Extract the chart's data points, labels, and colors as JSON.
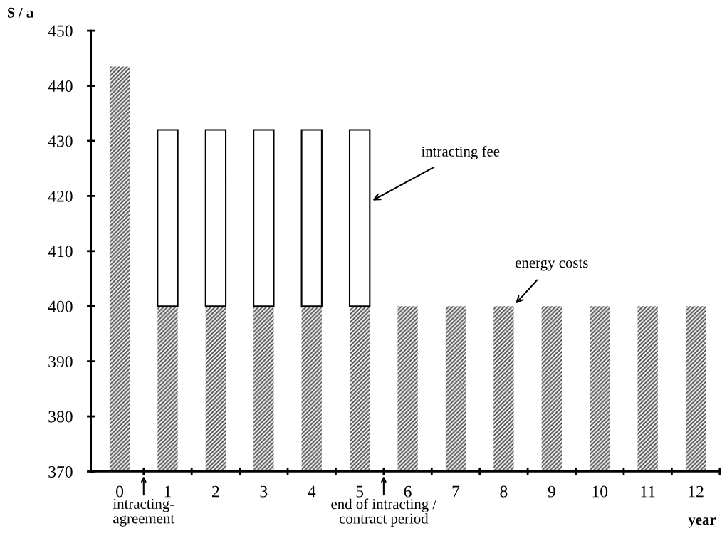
{
  "chart_data": {
    "type": "bar",
    "categories": [
      "0",
      "1",
      "2",
      "3",
      "4",
      "5",
      "6",
      "7",
      "8",
      "9",
      "10",
      "11",
      "12"
    ],
    "series": [
      {
        "name": "energy costs",
        "color": "#555555",
        "values": [
          443.5,
          400,
          400,
          400,
          400,
          400,
          400,
          400,
          400,
          400,
          400,
          400,
          400
        ]
      },
      {
        "name": "intracting fee",
        "color": "#ffffff",
        "values": [
          null,
          32,
          32,
          32,
          32,
          32,
          null,
          null,
          null,
          null,
          null,
          null,
          null
        ],
        "base": [
          null,
          400,
          400,
          400,
          400,
          400,
          null,
          null,
          null,
          null,
          null,
          null,
          null
        ]
      }
    ],
    "ylabel": "$ / a",
    "xlabel": "year",
    "ylim": [
      370,
      450
    ],
    "yticks": [
      370,
      380,
      390,
      400,
      410,
      420,
      430,
      440,
      450
    ],
    "annotations": [
      "intracting-\nagreement",
      "end of intracting /\ncontract period"
    ],
    "grid": false,
    "legend": false
  }
}
